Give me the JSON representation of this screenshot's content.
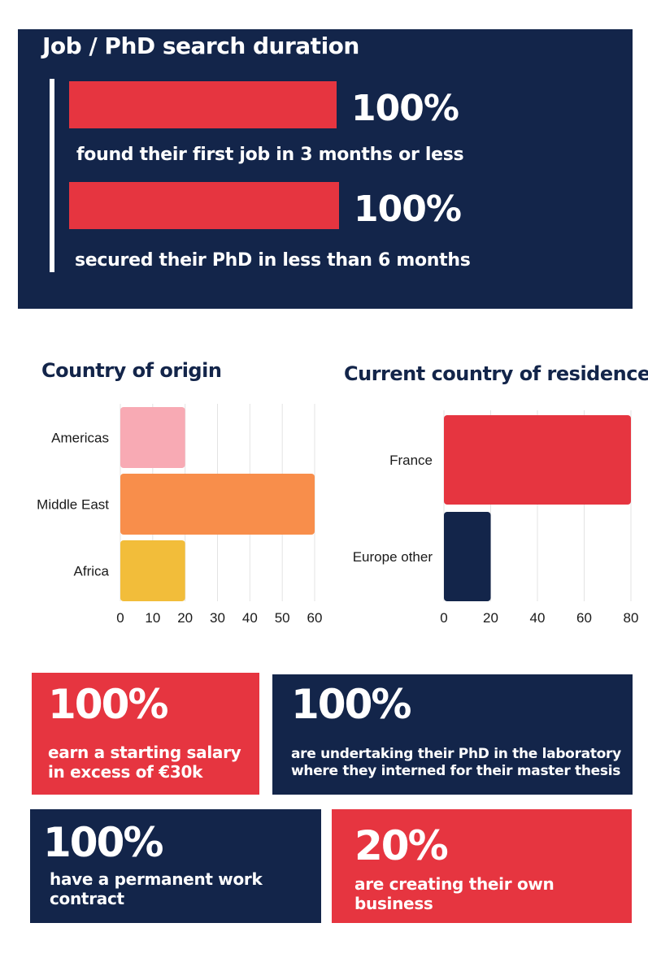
{
  "top_panel": {
    "title": "Job / PhD search duration",
    "items": [
      {
        "percent": "100%",
        "value": 100,
        "label": "found their first job in 3 months or less"
      },
      {
        "percent": "100%",
        "value": 100,
        "label": "secured their PhD in less than 6 months"
      }
    ]
  },
  "colors": {
    "navy": "#13254a",
    "red": "#e63540",
    "pink": "#f8aab4",
    "orange": "#f88e4b",
    "yellow": "#f2bd3a",
    "grid": "#e3e3e3"
  },
  "chart_data": [
    {
      "type": "bar",
      "orientation": "horizontal",
      "title": "Country of origin",
      "categories": [
        "Americas",
        "Middle East",
        "Africa"
      ],
      "values": [
        20,
        60,
        20
      ],
      "bar_colors": [
        "#f8aab4",
        "#f88e4b",
        "#f2bd3a"
      ],
      "xlim": [
        0,
        60
      ],
      "xticks": [
        "0",
        "10",
        "20",
        "30",
        "40",
        "50",
        "60"
      ],
      "grid": true
    },
    {
      "type": "bar",
      "orientation": "horizontal",
      "title": "Current country of residence",
      "categories": [
        "France",
        "Europe other"
      ],
      "values": [
        80,
        20
      ],
      "bar_colors": [
        "#e63540",
        "#13254a"
      ],
      "xlim": [
        0,
        80
      ],
      "xticks": [
        "0",
        "20",
        "40",
        "60",
        "80"
      ],
      "grid": true
    }
  ],
  "stats": [
    {
      "number": "100%",
      "text_lines": [
        "earn a starting salary",
        "in excess of €30k"
      ]
    },
    {
      "number": "100%",
      "text_lines": [
        "are undertaking their PhD in the laboratory",
        "where they interned for their master thesis"
      ]
    },
    {
      "number": "100%",
      "text_lines": [
        "have a permanent work",
        "contract"
      ]
    },
    {
      "number": "20%",
      "text_lines": [
        "are creating their own",
        "business"
      ]
    }
  ]
}
